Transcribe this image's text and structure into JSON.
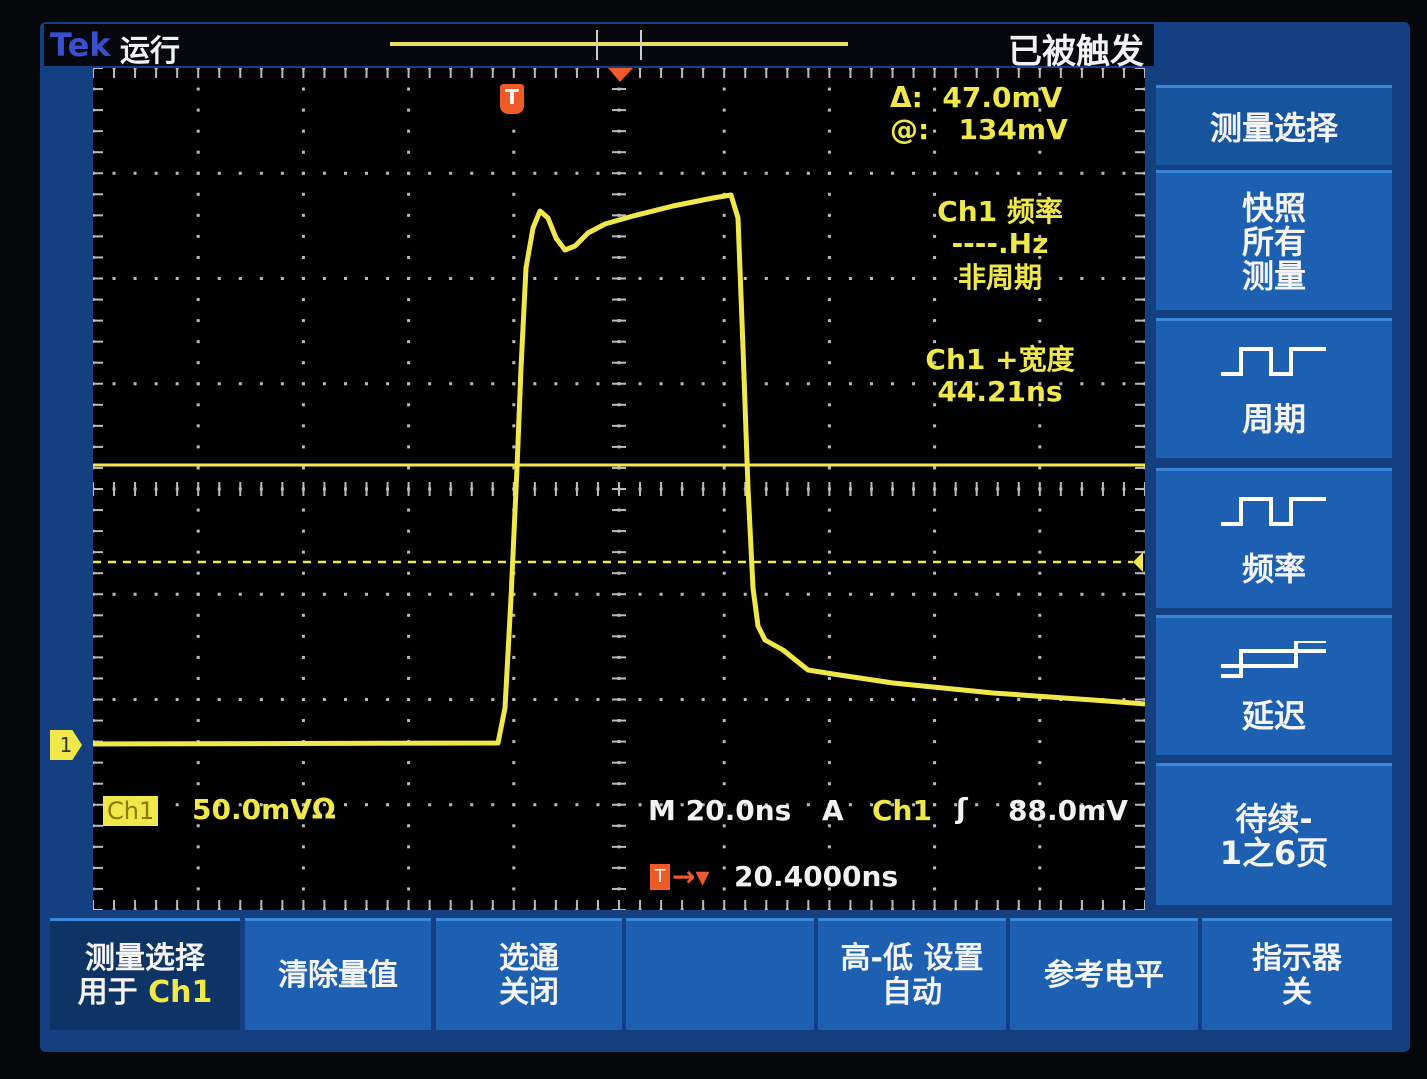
{
  "header": {
    "brand": "Tek",
    "run_state": "运行",
    "trigger_state": "已被触发"
  },
  "readouts": {
    "delta": "Δ:  47.0mV",
    "at": "@:   134mV",
    "freq_label": "Ch1 频率",
    "freq_value": "----.Hz",
    "freq_note": "非周期",
    "width_label": "Ch1 +宽度",
    "width_value": "44.21ns",
    "ch1_badge": "Ch1",
    "ch1_scale": "50.0mVΩ",
    "timebase": "M 20.0ns",
    "trigger_mode": "A",
    "trigger_source": "Ch1",
    "trigger_level": "88.0mV",
    "trigger_marker": "T",
    "trigger_offset": "20.4000ns",
    "channel_marker": "1"
  },
  "side_menu": {
    "title": "测量选择",
    "items": [
      {
        "label": "快照\n所有\n测量",
        "icon": "none"
      },
      {
        "label": "周期",
        "icon": "pulse-period-icon"
      },
      {
        "label": "频率",
        "icon": "pulse-frequency-icon"
      },
      {
        "label": "延迟",
        "icon": "step-delay-icon"
      },
      {
        "label": "待续-\n1之6页",
        "icon": "none"
      }
    ]
  },
  "bottom_menu": [
    {
      "line1": "测量选择",
      "line2a": "用于 ",
      "line2b": "Ch1"
    },
    {
      "line1": "清除量值",
      "line2a": "",
      "line2b": ""
    },
    {
      "line1": "选通",
      "line2a": "关闭",
      "line2b": ""
    },
    {
      "line1": "",
      "line2a": "",
      "line2b": ""
    },
    {
      "line1": "高-低 设置",
      "line2a": "自动",
      "line2b": ""
    },
    {
      "line1": "参考电平",
      "line2a": "",
      "line2b": ""
    },
    {
      "line1": "指示器",
      "line2a": "关",
      "line2b": ""
    }
  ],
  "colors": {
    "trace": "#f0e84a",
    "menu": "#1d5fb0",
    "marker": "#f05a28"
  }
}
